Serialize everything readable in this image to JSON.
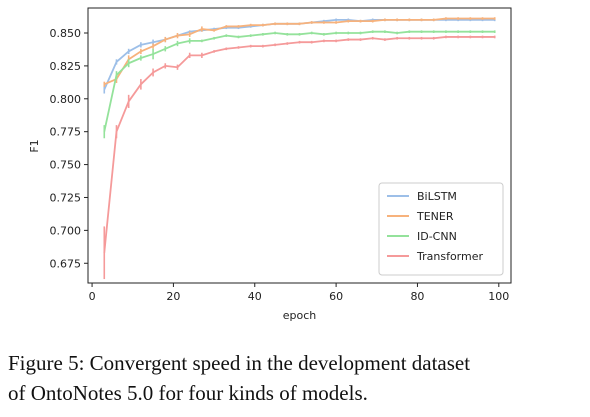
{
  "caption": {
    "line1": "Figure 5: Convergent speed in the development dataset",
    "line2": "of OntoNotes 5.0 for four kinds of models."
  },
  "chart_data": {
    "type": "line",
    "xlabel": "epoch",
    "ylabel": "F1",
    "xlim": [
      -1,
      103
    ],
    "ylim": [
      0.66,
      0.869
    ],
    "xticks": [
      0,
      20,
      40,
      60,
      80,
      100
    ],
    "yticks": [
      0.675,
      0.7,
      0.725,
      0.75,
      0.775,
      0.8,
      0.825,
      0.85
    ],
    "xtick_labels": [
      "0",
      "20",
      "40",
      "60",
      "80",
      "100"
    ],
    "ytick_labels": [
      "0.675",
      "0.700",
      "0.725",
      "0.750",
      "0.775",
      "0.800",
      "0.825",
      "0.850"
    ],
    "legend_position": "lower-right",
    "grid": false,
    "x": [
      3,
      6,
      9,
      12,
      15,
      18,
      21,
      24,
      27,
      30,
      33,
      36,
      39,
      42,
      45,
      48,
      51,
      54,
      57,
      60,
      63,
      66,
      69,
      72,
      75,
      78,
      81,
      84,
      87,
      90,
      93,
      96,
      99
    ],
    "series": [
      {
        "name": "BiLSTM",
        "color": "#9dbfe8",
        "values": [
          0.807,
          0.828,
          0.836,
          0.841,
          0.843,
          0.845,
          0.848,
          0.851,
          0.852,
          0.853,
          0.854,
          0.854,
          0.855,
          0.856,
          0.857,
          0.857,
          0.857,
          0.858,
          0.859,
          0.86,
          0.86,
          0.859,
          0.86,
          0.86,
          0.86,
          0.86,
          0.86,
          0.86,
          0.86,
          0.86,
          0.86,
          0.86,
          0.86
        ]
      },
      {
        "name": "TENER",
        "color": "#f7b27c",
        "values": [
          0.811,
          0.815,
          0.83,
          0.836,
          0.84,
          0.845,
          0.848,
          0.849,
          0.853,
          0.852,
          0.855,
          0.855,
          0.856,
          0.856,
          0.857,
          0.857,
          0.857,
          0.858,
          0.858,
          0.858,
          0.859,
          0.859,
          0.859,
          0.86,
          0.86,
          0.86,
          0.86,
          0.86,
          0.861,
          0.861,
          0.861,
          0.861,
          0.861
        ]
      },
      {
        "name": "ID-CNN",
        "color": "#94e29b",
        "values": [
          0.775,
          0.818,
          0.827,
          0.831,
          0.834,
          0.838,
          0.842,
          0.844,
          0.844,
          0.846,
          0.848,
          0.847,
          0.848,
          0.849,
          0.85,
          0.849,
          0.849,
          0.85,
          0.849,
          0.85,
          0.85,
          0.85,
          0.851,
          0.851,
          0.85,
          0.851,
          0.851,
          0.851,
          0.851,
          0.851,
          0.851,
          0.851,
          0.851
        ]
      },
      {
        "name": "Transformer",
        "color": "#f59a9a",
        "values": [
          0.683,
          0.775,
          0.798,
          0.811,
          0.82,
          0.825,
          0.824,
          0.833,
          0.833,
          0.836,
          0.838,
          0.839,
          0.84,
          0.84,
          0.841,
          0.842,
          0.843,
          0.843,
          0.844,
          0.844,
          0.845,
          0.845,
          0.846,
          0.845,
          0.846,
          0.846,
          0.846,
          0.846,
          0.847,
          0.847,
          0.847,
          0.847,
          0.847
        ]
      }
    ],
    "error_bars": {
      "BiLSTM": [
        0.003,
        0.002,
        0.002,
        0.002,
        0.002,
        0.002,
        0.001,
        0.001,
        0.001,
        0.001,
        0.001,
        0.001,
        0.001,
        0.001,
        0.001,
        0.001,
        0.001,
        0.001,
        0.001,
        0.001,
        0.001,
        0.001,
        0.001,
        0.001,
        0.001,
        0.001,
        0.001,
        0.001,
        0.001,
        0.001,
        0.001,
        0.001,
        0.001
      ],
      "TENER": [
        0.002,
        0.003,
        0.003,
        0.002,
        0.002,
        0.002,
        0.002,
        0.002,
        0.002,
        0.001,
        0.001,
        0.001,
        0.001,
        0.001,
        0.001,
        0.001,
        0.001,
        0.001,
        0.001,
        0.001,
        0.001,
        0.001,
        0.001,
        0.001,
        0.001,
        0.001,
        0.001,
        0.001,
        0.001,
        0.001,
        0.001,
        0.001,
        0.001
      ],
      "ID-CNN": [
        0.005,
        0.003,
        0.003,
        0.002,
        0.004,
        0.002,
        0.002,
        0.002,
        0.001,
        0.001,
        0.001,
        0.001,
        0.001,
        0.001,
        0.001,
        0.001,
        0.001,
        0.001,
        0.001,
        0.001,
        0.001,
        0.001,
        0.001,
        0.001,
        0.001,
        0.001,
        0.001,
        0.001,
        0.001,
        0.001,
        0.001,
        0.001,
        0.001
      ],
      "Transformer": [
        0.02,
        0.005,
        0.005,
        0.004,
        0.003,
        0.002,
        0.002,
        0.002,
        0.002,
        0.001,
        0.001,
        0.001,
        0.001,
        0.001,
        0.001,
        0.001,
        0.001,
        0.001,
        0.001,
        0.001,
        0.001,
        0.001,
        0.001,
        0.001,
        0.001,
        0.001,
        0.001,
        0.001,
        0.001,
        0.001,
        0.001,
        0.001,
        0.001
      ]
    }
  }
}
